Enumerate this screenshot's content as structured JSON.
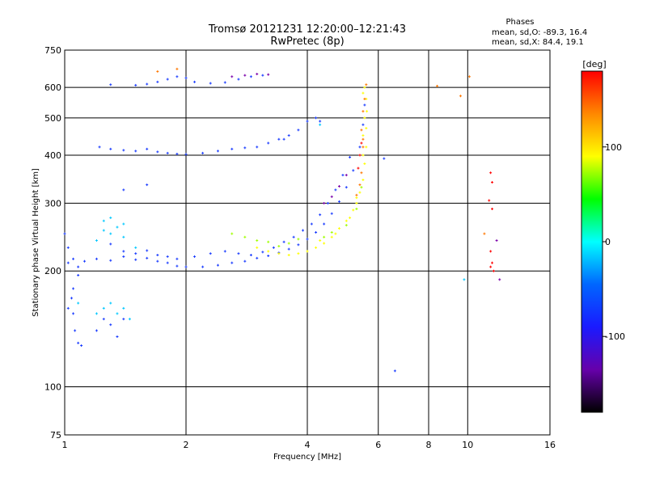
{
  "chart_data": {
    "type": "scatter",
    "title": "Tromsø 20121231 12:20:00–12:21:43",
    "subtitle": "RwPretec (8p)",
    "xlabel": "Frequency [MHz]",
    "ylabel": "Stationary phase Virtual Height [km]",
    "x_scale": "log",
    "y_scale": "log",
    "xlim": [
      1,
      16
    ],
    "ylim": [
      75,
      750
    ],
    "grid": true,
    "x_ticks": [
      1,
      2,
      4,
      6,
      8,
      10,
      16
    ],
    "y_ticks": [
      75,
      100,
      200,
      300,
      400,
      500,
      600,
      750
    ],
    "stats": {
      "heading": "Phases",
      "line_o": "mean, sd,O: -89.3, 16.4",
      "line_x": "mean, sd,X:  84.4, 19.1"
    },
    "colorbar": {
      "unit": "[deg]",
      "range": [
        -180,
        180
      ],
      "ticks": [
        100,
        0,
        -100
      ],
      "colors": [
        "#ff0000",
        "#ff8800",
        "#ffff00",
        "#00ff00",
        "#00ffff",
        "#0066ff",
        "#1a1aff",
        "#6600aa",
        "#000000"
      ]
    },
    "series": [
      {
        "color": "#1a3cff",
        "points": [
          [
            1.02,
            210
          ],
          [
            1.05,
            215
          ],
          [
            1.08,
            205
          ],
          [
            1.12,
            212
          ],
          [
            1.2,
            215
          ],
          [
            1.3,
            213
          ],
          [
            1.4,
            218
          ],
          [
            1.5,
            214
          ],
          [
            1.6,
            216
          ],
          [
            1.7,
            212
          ],
          [
            1.8,
            210
          ],
          [
            1.9,
            206
          ],
          [
            2.0,
            205
          ],
          [
            2.2,
            205
          ],
          [
            2.4,
            207
          ],
          [
            2.6,
            210
          ],
          [
            2.8,
            212
          ],
          [
            3.0,
            216
          ],
          [
            3.2,
            219
          ],
          [
            3.4,
            223
          ],
          [
            3.6,
            228
          ],
          [
            3.8,
            234
          ],
          [
            4.0,
            242
          ],
          [
            4.2,
            252
          ],
          [
            4.4,
            265
          ],
          [
            4.6,
            282
          ],
          [
            4.8,
            303
          ],
          [
            5.0,
            330
          ],
          [
            5.2,
            365
          ],
          [
            5.4,
            420
          ],
          [
            5.5,
            480
          ],
          [
            5.55,
            540
          ],
          [
            1.3,
            235
          ],
          [
            1.4,
            225
          ],
          [
            1.5,
            222
          ],
          [
            1.6,
            226
          ],
          [
            1.7,
            220
          ],
          [
            1.8,
            218
          ],
          [
            1.9,
            215
          ],
          [
            2.1,
            218
          ],
          [
            2.3,
            222
          ],
          [
            2.5,
            225
          ],
          [
            2.7,
            222
          ],
          [
            2.9,
            220
          ],
          [
            3.1,
            224
          ],
          [
            3.3,
            230
          ],
          [
            3.5,
            238
          ],
          [
            3.7,
            245
          ],
          [
            3.9,
            255
          ],
          [
            4.1,
            265
          ],
          [
            4.3,
            280
          ],
          [
            4.5,
            300
          ],
          [
            4.7,
            325
          ],
          [
            4.9,
            355
          ],
          [
            5.1,
            395
          ],
          [
            1.22,
            420
          ],
          [
            1.3,
            415
          ],
          [
            1.4,
            412
          ],
          [
            1.5,
            410
          ],
          [
            1.6,
            415
          ],
          [
            1.7,
            408
          ],
          [
            1.8,
            405
          ],
          [
            1.9,
            403
          ],
          [
            2.0,
            402
          ],
          [
            2.2,
            405
          ],
          [
            2.4,
            410
          ],
          [
            2.6,
            415
          ],
          [
            2.8,
            418
          ],
          [
            3.0,
            420
          ],
          [
            3.2,
            430
          ],
          [
            3.4,
            440
          ],
          [
            3.6,
            450
          ],
          [
            3.8,
            465
          ],
          [
            4.0,
            490
          ],
          [
            4.2,
            500
          ],
          [
            1.3,
            610
          ],
          [
            1.5,
            608
          ],
          [
            1.6,
            612
          ],
          [
            1.7,
            620
          ],
          [
            1.8,
            630
          ],
          [
            1.9,
            640
          ],
          [
            2.0,
            635
          ],
          [
            2.1,
            620
          ],
          [
            2.3,
            615
          ],
          [
            2.5,
            618
          ],
          [
            2.7,
            630
          ],
          [
            2.9,
            640
          ],
          [
            3.1,
            645
          ],
          [
            1.02,
            160
          ],
          [
            1.04,
            170
          ],
          [
            1.05,
            155
          ],
          [
            1.06,
            140
          ],
          [
            1.08,
            130
          ],
          [
            1.1,
            128
          ],
          [
            1.2,
            140
          ],
          [
            1.25,
            150
          ],
          [
            1.3,
            145
          ],
          [
            1.35,
            135
          ],
          [
            1.4,
            150
          ],
          [
            1.0,
            250
          ],
          [
            1.02,
            230
          ],
          [
            1.05,
            180
          ],
          [
            1.08,
            195
          ],
          [
            1.4,
            325
          ],
          [
            1.6,
            335
          ],
          [
            3.5,
            440
          ],
          [
            4.3,
            490
          ],
          [
            6.2,
            392
          ],
          [
            6.6,
            110
          ]
        ]
      },
      {
        "color": "#00c8ff",
        "points": [
          [
            1.2,
            155
          ],
          [
            1.25,
            160
          ],
          [
            1.3,
            165
          ],
          [
            1.35,
            155
          ],
          [
            1.4,
            160
          ],
          [
            1.45,
            150
          ],
          [
            1.2,
            240
          ],
          [
            1.25,
            255
          ],
          [
            1.3,
            250
          ],
          [
            1.35,
            260
          ],
          [
            1.4,
            245
          ],
          [
            1.5,
            230
          ],
          [
            1.25,
            270
          ],
          [
            1.3,
            275
          ],
          [
            1.4,
            265
          ],
          [
            1.08,
            165
          ],
          [
            4.3,
            480
          ],
          [
            9.8,
            190
          ]
        ]
      },
      {
        "color": "#ffff00",
        "points": [
          [
            3.0,
            230
          ],
          [
            3.2,
            225
          ],
          [
            3.4,
            222
          ],
          [
            3.6,
            220
          ],
          [
            3.8,
            222
          ],
          [
            4.0,
            225
          ],
          [
            4.2,
            230
          ],
          [
            4.4,
            236
          ],
          [
            4.6,
            245
          ],
          [
            4.8,
            258
          ],
          [
            5.0,
            270
          ],
          [
            5.2,
            288
          ],
          [
            5.3,
            300
          ],
          [
            5.4,
            320
          ],
          [
            5.5,
            345
          ],
          [
            5.55,
            380
          ],
          [
            5.6,
            420
          ],
          [
            5.6,
            470
          ],
          [
            5.62,
            520
          ],
          [
            5.6,
            560
          ],
          [
            5.55,
            600
          ],
          [
            4.3,
            240
          ],
          [
            4.7,
            250
          ],
          [
            5.1,
            275
          ],
          [
            5.3,
            310
          ],
          [
            5.5,
            400
          ],
          [
            5.5,
            450
          ],
          [
            5.55,
            500
          ],
          [
            5.5,
            580
          ]
        ]
      },
      {
        "color": "#a0ff00",
        "points": [
          [
            2.6,
            250
          ],
          [
            2.8,
            245
          ],
          [
            3.0,
            240
          ],
          [
            3.2,
            238
          ],
          [
            3.4,
            232
          ],
          [
            3.6,
            236
          ],
          [
            3.8,
            242
          ],
          [
            4.4,
            245
          ],
          [
            4.6,
            252
          ],
          [
            5.0,
            263
          ],
          [
            5.3,
            290
          ],
          [
            5.45,
            330
          ]
        ]
      },
      {
        "color": "#ff7700",
        "points": [
          [
            5.5,
            440
          ],
          [
            5.45,
            465
          ],
          [
            5.5,
            520
          ],
          [
            5.55,
            560
          ],
          [
            5.6,
            610
          ],
          [
            5.5,
            420
          ],
          [
            5.45,
            360
          ],
          [
            5.4,
            335
          ],
          [
            5.3,
            315
          ],
          [
            1.7,
            660
          ],
          [
            1.9,
            670
          ],
          [
            8.4,
            605
          ],
          [
            9.6,
            570
          ],
          [
            10.1,
            640
          ],
          [
            11,
            250
          ]
        ]
      },
      {
        "color": "#ff0000",
        "points": [
          [
            5.35,
            370
          ],
          [
            5.4,
            400
          ],
          [
            5.45,
            430
          ],
          [
            11.4,
            360
          ],
          [
            11.5,
            340
          ],
          [
            11.4,
            225
          ],
          [
            11.5,
            210
          ],
          [
            11.4,
            205
          ],
          [
            11.6,
            200
          ],
          [
            11.5,
            290
          ],
          [
            11.3,
            305
          ]
        ]
      },
      {
        "color": "#7a00aa",
        "points": [
          [
            4.4,
            300
          ],
          [
            4.6,
            312
          ],
          [
            4.8,
            332
          ],
          [
            5.0,
            355
          ],
          [
            2.6,
            640
          ],
          [
            2.8,
            645
          ],
          [
            3.0,
            650
          ],
          [
            3.2,
            648
          ],
          [
            12,
            190
          ],
          [
            11.8,
            240
          ]
        ]
      }
    ]
  }
}
